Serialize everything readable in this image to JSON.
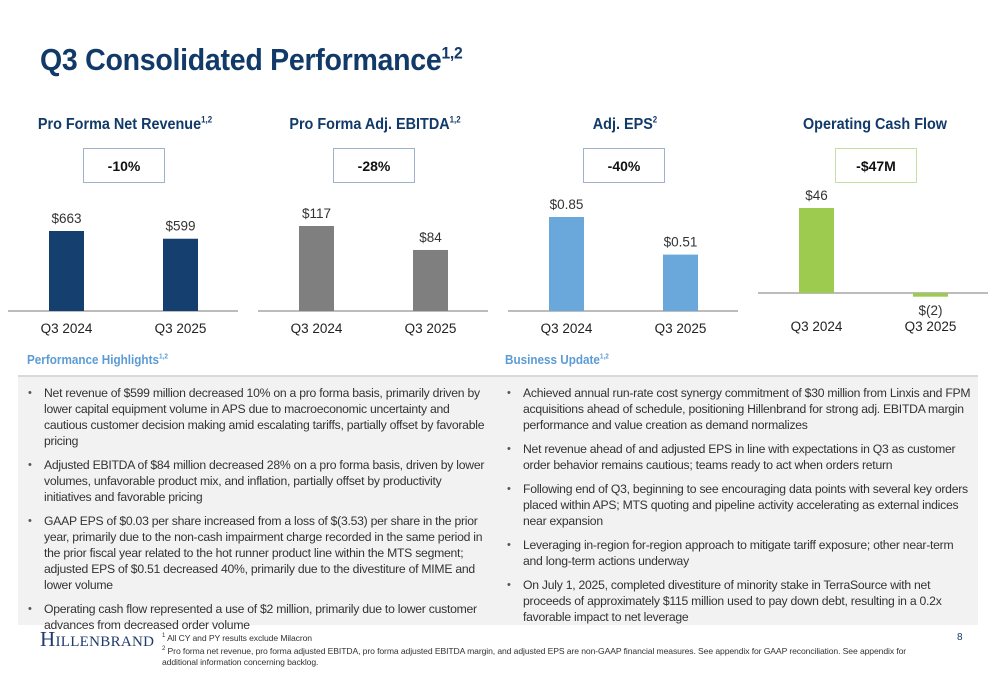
{
  "slide": {
    "title": "Q3 Consolidated Performance",
    "title_sup": "1,2",
    "page_number": "8",
    "logo": "Hillenbrand"
  },
  "charts": [
    {
      "title": "Pro Forma Net Revenue",
      "sup": "1,2",
      "change": "-10%",
      "color": "#153f6e"
    },
    {
      "title": "Pro Forma Adj. EBITDA",
      "sup": "1,2",
      "change": "-28%",
      "color": "#7f7f7f"
    },
    {
      "title": "Adj. EPS",
      "sup": "2",
      "change": "-40%",
      "color": "#6aa8dc"
    },
    {
      "title": "Operating Cash Flow",
      "sup": "",
      "change": "-$47M",
      "color": "#9ccb50"
    }
  ],
  "chart_data": [
    {
      "type": "bar",
      "title": "Pro Forma Net Revenue",
      "categories": [
        "Q3 2024",
        "Q3 2025"
      ],
      "values": [
        663,
        599
      ],
      "labels": [
        "$663",
        "$599"
      ],
      "unit": "$M",
      "change_label": "-10%"
    },
    {
      "type": "bar",
      "title": "Pro Forma Adj. EBITDA",
      "categories": [
        "Q3 2024",
        "Q3 2025"
      ],
      "values": [
        117,
        84
      ],
      "labels": [
        "$117",
        "$84"
      ],
      "unit": "$M",
      "change_label": "-28%"
    },
    {
      "type": "bar",
      "title": "Adj. EPS",
      "categories": [
        "Q3 2024",
        "Q3 2025"
      ],
      "values": [
        0.85,
        0.51
      ],
      "labels": [
        "$0.85",
        "$0.51"
      ],
      "unit": "$",
      "change_label": "-40%"
    },
    {
      "type": "bar",
      "title": "Operating Cash Flow",
      "categories": [
        "Q3 2024",
        "Q3 2025"
      ],
      "values": [
        46,
        -2
      ],
      "labels": [
        "$46",
        "$(2)"
      ],
      "unit": "$M",
      "change_label": "-$47M"
    }
  ],
  "performance": {
    "title": "Performance Highlights",
    "sup": "1,2",
    "bullets": [
      "Net revenue of $599 million decreased 10% on a pro forma basis, primarily driven by lower capital equipment volume in APS due to macroeconomic uncertainty and cautious customer decision making amid escalating tariffs, partially offset by favorable pricing",
      "Adjusted EBITDA of $84 million decreased 28% on a pro forma basis, driven by lower volumes, unfavorable product mix, and inflation, partially offset by productivity initiatives and favorable pricing",
      "GAAP EPS of $0.03 per share increased from a loss of $(3.53) per share in the prior year, primarily due to the non-cash impairment charge recorded in the same period in the prior fiscal year related to the hot runner product line within the MTS segment; adjusted EPS of $0.51 decreased 40%, primarily due to the divestiture of MIME and lower volume",
      "Operating cash flow represented a use of $2 million, primarily due to lower customer advances from decreased order volume"
    ]
  },
  "business": {
    "title": "Business Update",
    "sup": "1,2",
    "bullets": [
      "Achieved annual run-rate cost synergy commitment of $30 million from Linxis and FPM acquisitions ahead of schedule, positioning Hillenbrand for strong adj. EBITDA margin performance and value creation as demand normalizes",
      "Net revenue ahead of and adjusted EPS in line with expectations in Q3 as customer order behavior remains cautious; teams ready to act when orders return",
      "Following end of Q3, beginning to see encouraging data points with several key orders placed within APS; MTS quoting and pipeline activity accelerating as external indices near expansion",
      "Leveraging in-region for-region approach to mitigate tariff exposure; other near-term and long-term actions underway",
      "On July 1, 2025, completed divestiture of minority stake in TerraSource with net proceeds of approximately $115 million used to pay down debt, resulting in a 0.2x favorable impact to net leverage"
    ]
  },
  "footnotes": [
    {
      "num": "1",
      "text": "All CY and PY results exclude Milacron"
    },
    {
      "num": "2",
      "text": "Pro forma net revenue, pro forma adjusted EBITDA, pro forma adjusted EBITDA margin, and adjusted EPS are non-GAAP financial measures. See appendix for GAAP reconciliation. See appendix for additional information concerning backlog."
    }
  ]
}
